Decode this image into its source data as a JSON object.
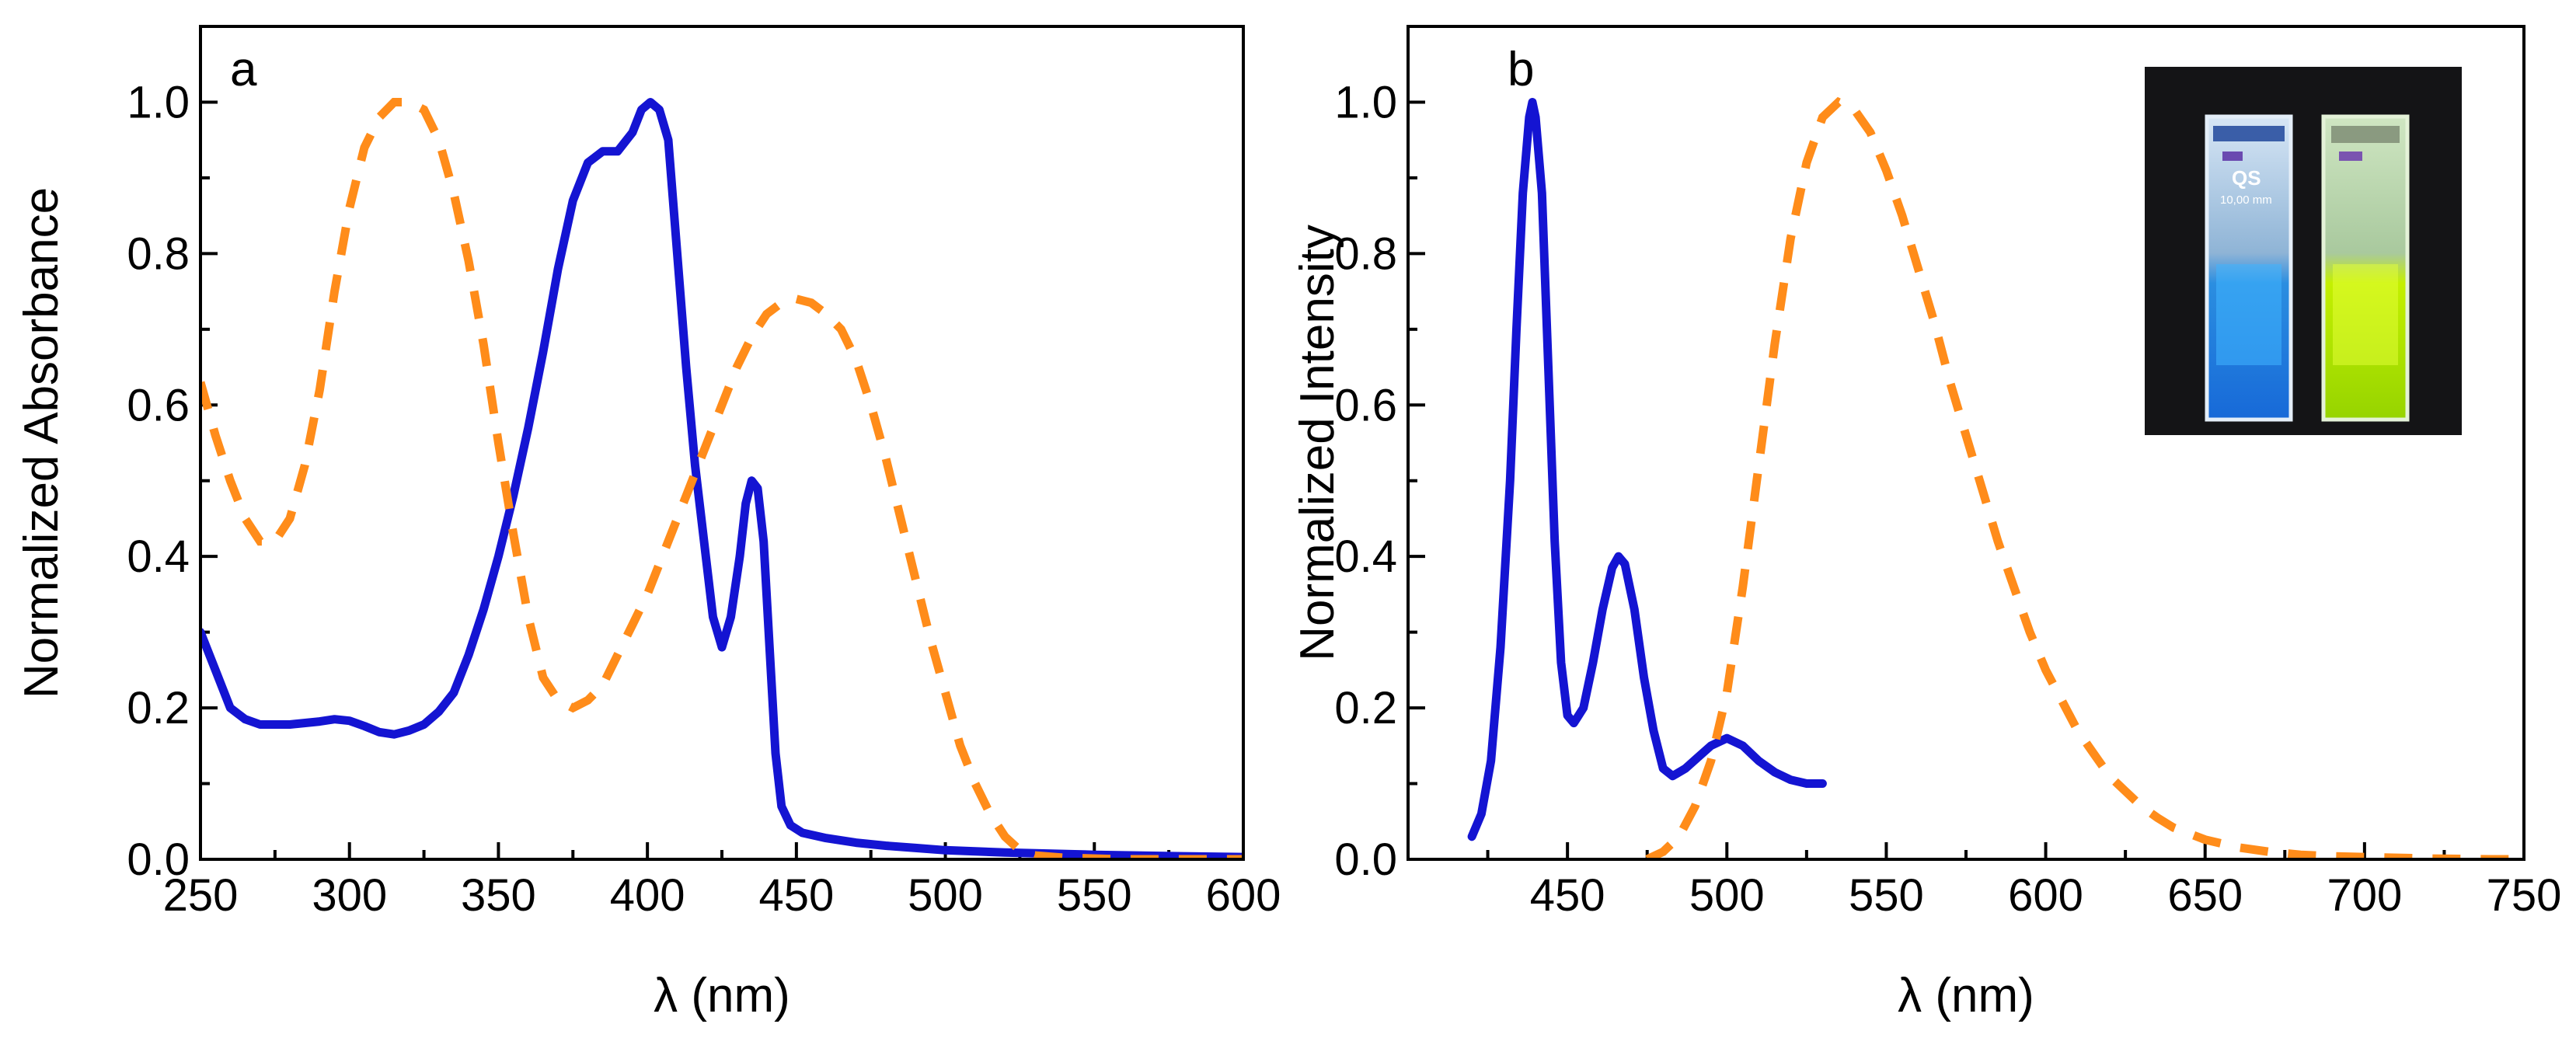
{
  "chart_data": [
    {
      "type": "line",
      "panel_label": "a",
      "xlabel": "λ (nm)",
      "ylabel": "Normalized Absorbance",
      "xlim": [
        250,
        600
      ],
      "ylim": [
        0,
        1.1
      ],
      "xticks": [
        250,
        300,
        350,
        400,
        450,
        500,
        550,
        600
      ],
      "xminor": [
        275,
        325,
        375,
        425,
        475,
        525,
        575
      ],
      "yticks": [
        0.0,
        0.2,
        0.4,
        0.6,
        0.8,
        1.0
      ],
      "yminor": [
        0.1,
        0.3,
        0.5,
        0.7,
        0.9
      ],
      "ytick_labels": [
        "0.0",
        "0.2",
        "0.4",
        "0.6",
        "0.8",
        "1.0"
      ],
      "grid": false,
      "series": [
        {
          "style": "solid",
          "color": "#1414d2",
          "points": [
            [
              250,
              0.3
            ],
            [
              255,
              0.25
            ],
            [
              260,
              0.2
            ],
            [
              265,
              0.185
            ],
            [
              270,
              0.178
            ],
            [
              280,
              0.178
            ],
            [
              290,
              0.182
            ],
            [
              295,
              0.185
            ],
            [
              300,
              0.183
            ],
            [
              305,
              0.176
            ],
            [
              310,
              0.168
            ],
            [
              315,
              0.165
            ],
            [
              320,
              0.17
            ],
            [
              325,
              0.178
            ],
            [
              330,
              0.195
            ],
            [
              335,
              0.22
            ],
            [
              340,
              0.27
            ],
            [
              345,
              0.33
            ],
            [
              350,
              0.4
            ],
            [
              355,
              0.48
            ],
            [
              360,
              0.57
            ],
            [
              365,
              0.67
            ],
            [
              370,
              0.78
            ],
            [
              375,
              0.87
            ],
            [
              380,
              0.92
            ],
            [
              385,
              0.935
            ],
            [
              390,
              0.935
            ],
            [
              395,
              0.96
            ],
            [
              398,
              0.99
            ],
            [
              401,
              1.0
            ],
            [
              404,
              0.99
            ],
            [
              407,
              0.95
            ],
            [
              410,
              0.8
            ],
            [
              413,
              0.65
            ],
            [
              416,
              0.52
            ],
            [
              419,
              0.42
            ],
            [
              422,
              0.32
            ],
            [
              425,
              0.28
            ],
            [
              428,
              0.32
            ],
            [
              431,
              0.4
            ],
            [
              433,
              0.47
            ],
            [
              435,
              0.5
            ],
            [
              437,
              0.49
            ],
            [
              439,
              0.42
            ],
            [
              441,
              0.28
            ],
            [
              443,
              0.14
            ],
            [
              445,
              0.07
            ],
            [
              448,
              0.045
            ],
            [
              452,
              0.035
            ],
            [
              460,
              0.028
            ],
            [
              470,
              0.022
            ],
            [
              480,
              0.018
            ],
            [
              490,
              0.015
            ],
            [
              500,
              0.012
            ],
            [
              520,
              0.009
            ],
            [
              550,
              0.006
            ],
            [
              580,
              0.004
            ],
            [
              600,
              0.003
            ]
          ]
        },
        {
          "style": "dashed",
          "color": "#ff8c1a",
          "points": [
            [
              250,
              0.63
            ],
            [
              255,
              0.56
            ],
            [
              260,
              0.5
            ],
            [
              265,
              0.45
            ],
            [
              270,
              0.42
            ],
            [
              275,
              0.42
            ],
            [
              280,
              0.45
            ],
            [
              285,
              0.52
            ],
            [
              290,
              0.62
            ],
            [
              295,
              0.75
            ],
            [
              300,
              0.86
            ],
            [
              305,
              0.94
            ],
            [
              310,
              0.98
            ],
            [
              315,
              1.0
            ],
            [
              320,
              1.0
            ],
            [
              325,
              0.99
            ],
            [
              330,
              0.95
            ],
            [
              335,
              0.88
            ],
            [
              340,
              0.79
            ],
            [
              345,
              0.68
            ],
            [
              350,
              0.55
            ],
            [
              355,
              0.43
            ],
            [
              360,
              0.32
            ],
            [
              365,
              0.24
            ],
            [
              370,
              0.21
            ],
            [
              375,
              0.2
            ],
            [
              380,
              0.21
            ],
            [
              385,
              0.23
            ],
            [
              390,
              0.27
            ],
            [
              395,
              0.31
            ],
            [
              400,
              0.35
            ],
            [
              405,
              0.4
            ],
            [
              410,
              0.45
            ],
            [
              415,
              0.5
            ],
            [
              420,
              0.55
            ],
            [
              425,
              0.6
            ],
            [
              430,
              0.65
            ],
            [
              435,
              0.69
            ],
            [
              440,
              0.72
            ],
            [
              445,
              0.735
            ],
            [
              450,
              0.74
            ],
            [
              455,
              0.735
            ],
            [
              460,
              0.72
            ],
            [
              465,
              0.7
            ],
            [
              470,
              0.66
            ],
            [
              475,
              0.6
            ],
            [
              480,
              0.53
            ],
            [
              485,
              0.45
            ],
            [
              490,
              0.37
            ],
            [
              495,
              0.29
            ],
            [
              500,
              0.22
            ],
            [
              505,
              0.15
            ],
            [
              510,
              0.1
            ],
            [
              515,
              0.06
            ],
            [
              520,
              0.03
            ],
            [
              525,
              0.012
            ],
            [
              530,
              0.005
            ],
            [
              540,
              0.002
            ],
            [
              560,
              0.0
            ],
            [
              580,
              0.0
            ],
            [
              600,
              0.0
            ]
          ]
        }
      ]
    },
    {
      "type": "line",
      "panel_label": "b",
      "xlabel": "λ (nm)",
      "ylabel": "Normalized Intensity",
      "xlim": [
        400,
        750
      ],
      "ylim": [
        0,
        1.1
      ],
      "xticks": [
        450,
        500,
        550,
        600,
        650,
        700,
        750
      ],
      "xminor": [
        425,
        475,
        525,
        575,
        625,
        675,
        725
      ],
      "yticks": [
        0.0,
        0.2,
        0.4,
        0.6,
        0.8,
        1.0
      ],
      "yminor": [
        0.1,
        0.3,
        0.5,
        0.7,
        0.9
      ],
      "ytick_labels": [
        "0.0",
        "0.2",
        "0.4",
        "0.6",
        "0.8",
        "1.0"
      ],
      "grid": false,
      "inset": {
        "position": "top-right",
        "description": "two cuvettes: blue emission (left), green-yellow emission (right)",
        "cuvette_label": "QS",
        "cuvette_path": "10,00 mm"
      },
      "series": [
        {
          "style": "solid",
          "color": "#1414d2",
          "points": [
            [
              420,
              0.03
            ],
            [
              423,
              0.06
            ],
            [
              426,
              0.13
            ],
            [
              429,
              0.28
            ],
            [
              432,
              0.5
            ],
            [
              434,
              0.7
            ],
            [
              436,
              0.88
            ],
            [
              438,
              0.98
            ],
            [
              439,
              1.0
            ],
            [
              440,
              0.98
            ],
            [
              442,
              0.88
            ],
            [
              444,
              0.65
            ],
            [
              446,
              0.42
            ],
            [
              448,
              0.26
            ],
            [
              450,
              0.19
            ],
            [
              452,
              0.18
            ],
            [
              455,
              0.2
            ],
            [
              458,
              0.26
            ],
            [
              461,
              0.33
            ],
            [
              464,
              0.385
            ],
            [
              466,
              0.4
            ],
            [
              468,
              0.39
            ],
            [
              471,
              0.33
            ],
            [
              474,
              0.24
            ],
            [
              477,
              0.17
            ],
            [
              480,
              0.12
            ],
            [
              483,
              0.11
            ],
            [
              487,
              0.12
            ],
            [
              491,
              0.135
            ],
            [
              495,
              0.15
            ],
            [
              500,
              0.16
            ],
            [
              505,
              0.15
            ],
            [
              510,
              0.13
            ],
            [
              515,
              0.115
            ],
            [
              520,
              0.105
            ],
            [
              525,
              0.1
            ],
            [
              530,
              0.1
            ]
          ]
        },
        {
          "style": "dashed",
          "color": "#ff8c1a",
          "points": [
            [
              475,
              0.0
            ],
            [
              480,
              0.01
            ],
            [
              485,
              0.03
            ],
            [
              490,
              0.07
            ],
            [
              495,
              0.13
            ],
            [
              500,
              0.22
            ],
            [
              505,
              0.36
            ],
            [
              510,
              0.52
            ],
            [
              515,
              0.68
            ],
            [
              520,
              0.82
            ],
            [
              525,
              0.92
            ],
            [
              530,
              0.98
            ],
            [
              535,
              1.0
            ],
            [
              540,
              0.99
            ],
            [
              545,
              0.96
            ],
            [
              550,
              0.91
            ],
            [
              555,
              0.85
            ],
            [
              560,
              0.78
            ],
            [
              565,
              0.71
            ],
            [
              570,
              0.63
            ],
            [
              575,
              0.56
            ],
            [
              580,
              0.49
            ],
            [
              585,
              0.42
            ],
            [
              590,
              0.36
            ],
            [
              595,
              0.3
            ],
            [
              600,
              0.25
            ],
            [
              605,
              0.21
            ],
            [
              610,
              0.17
            ],
            [
              615,
              0.14
            ],
            [
              620,
              0.11
            ],
            [
              625,
              0.09
            ],
            [
              630,
              0.07
            ],
            [
              635,
              0.055
            ],
            [
              640,
              0.042
            ],
            [
              650,
              0.026
            ],
            [
              660,
              0.016
            ],
            [
              670,
              0.01
            ],
            [
              680,
              0.006
            ],
            [
              690,
              0.004
            ],
            [
              700,
              0.003
            ],
            [
              720,
              0.001
            ],
            [
              740,
              0.0
            ],
            [
              750,
              0.0
            ]
          ]
        }
      ]
    }
  ]
}
